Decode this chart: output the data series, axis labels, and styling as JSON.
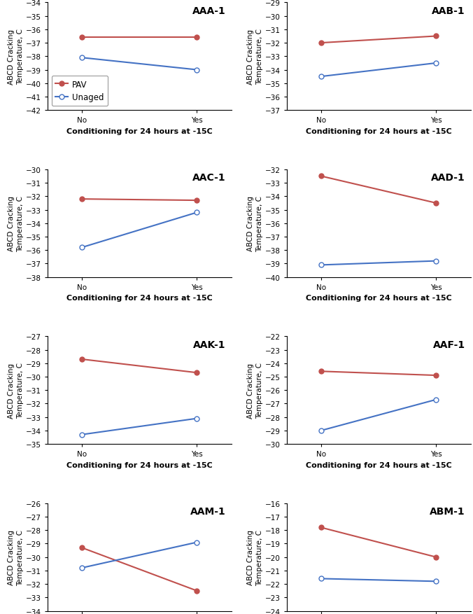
{
  "panels": [
    {
      "title": "AAA-1",
      "pav": [
        -36.6,
        -36.6
      ],
      "unaged": [
        -38.1,
        -39.0
      ],
      "ylim": [
        -42,
        -34
      ],
      "yticks": [
        -42,
        -41,
        -40,
        -39,
        -38,
        -37,
        -36,
        -35,
        -34
      ],
      "show_legend": true
    },
    {
      "title": "AAB-1",
      "pav": [
        -32.0,
        -31.5
      ],
      "unaged": [
        -34.5,
        -33.5
      ],
      "ylim": [
        -37,
        -29
      ],
      "yticks": [
        -37,
        -36,
        -35,
        -34,
        -33,
        -32,
        -31,
        -30,
        -29
      ],
      "show_legend": false
    },
    {
      "title": "AAC-1",
      "pav": [
        -32.2,
        -32.3
      ],
      "unaged": [
        -35.8,
        -33.2
      ],
      "ylim": [
        -38,
        -30
      ],
      "yticks": [
        -38,
        -37,
        -36,
        -35,
        -34,
        -33,
        -32,
        -31,
        -30
      ],
      "show_legend": false
    },
    {
      "title": "AAD-1",
      "pav": [
        -32.5,
        -34.5
      ],
      "unaged": [
        -39.1,
        -38.8
      ],
      "ylim": [
        -40,
        -32
      ],
      "yticks": [
        -40,
        -39,
        -38,
        -37,
        -36,
        -35,
        -34,
        -33,
        -32
      ],
      "show_legend": false
    },
    {
      "title": "AAK-1",
      "pav": [
        -28.7,
        -29.7
      ],
      "unaged": [
        -34.3,
        -33.1
      ],
      "ylim": [
        -35,
        -27
      ],
      "yticks": [
        -35,
        -34,
        -33,
        -32,
        -31,
        -30,
        -29,
        -28,
        -27
      ],
      "show_legend": false
    },
    {
      "title": "AAF-1",
      "pav": [
        -24.6,
        -24.9
      ],
      "unaged": [
        -29.0,
        -26.7
      ],
      "ylim": [
        -30,
        -22
      ],
      "yticks": [
        -30,
        -29,
        -28,
        -27,
        -26,
        -25,
        -24,
        -23,
        -22
      ],
      "show_legend": false
    },
    {
      "title": "AAM-1",
      "pav": [
        -29.3,
        -32.5
      ],
      "unaged": [
        -30.8,
        -28.9
      ],
      "ylim": [
        -34,
        -26
      ],
      "yticks": [
        -34,
        -33,
        -32,
        -31,
        -30,
        -29,
        -28,
        -27,
        -26
      ],
      "show_legend": false
    },
    {
      "title": "ABM-1",
      "pav": [
        -17.8,
        -20.0
      ],
      "unaged": [
        -21.6,
        -21.8
      ],
      "ylim": [
        -24,
        -16
      ],
      "yticks": [
        -24,
        -23,
        -22,
        -21,
        -20,
        -19,
        -18,
        -17,
        -16
      ],
      "show_legend": false
    }
  ],
  "pav_color": "#C0504D",
  "unaged_color": "#4472C4",
  "xlabel": "Conditioning for 24 hours at -15C",
  "ylabel_line1": "ABCD Cracking",
  "ylabel_line2": "Temperature, C",
  "xtick_labels": [
    "No",
    "Yes"
  ],
  "title_fontsize": 10,
  "label_fontsize": 7.5,
  "tick_fontsize": 7.5,
  "legend_fontsize": 8.5,
  "xlabel_fontsize": 8
}
